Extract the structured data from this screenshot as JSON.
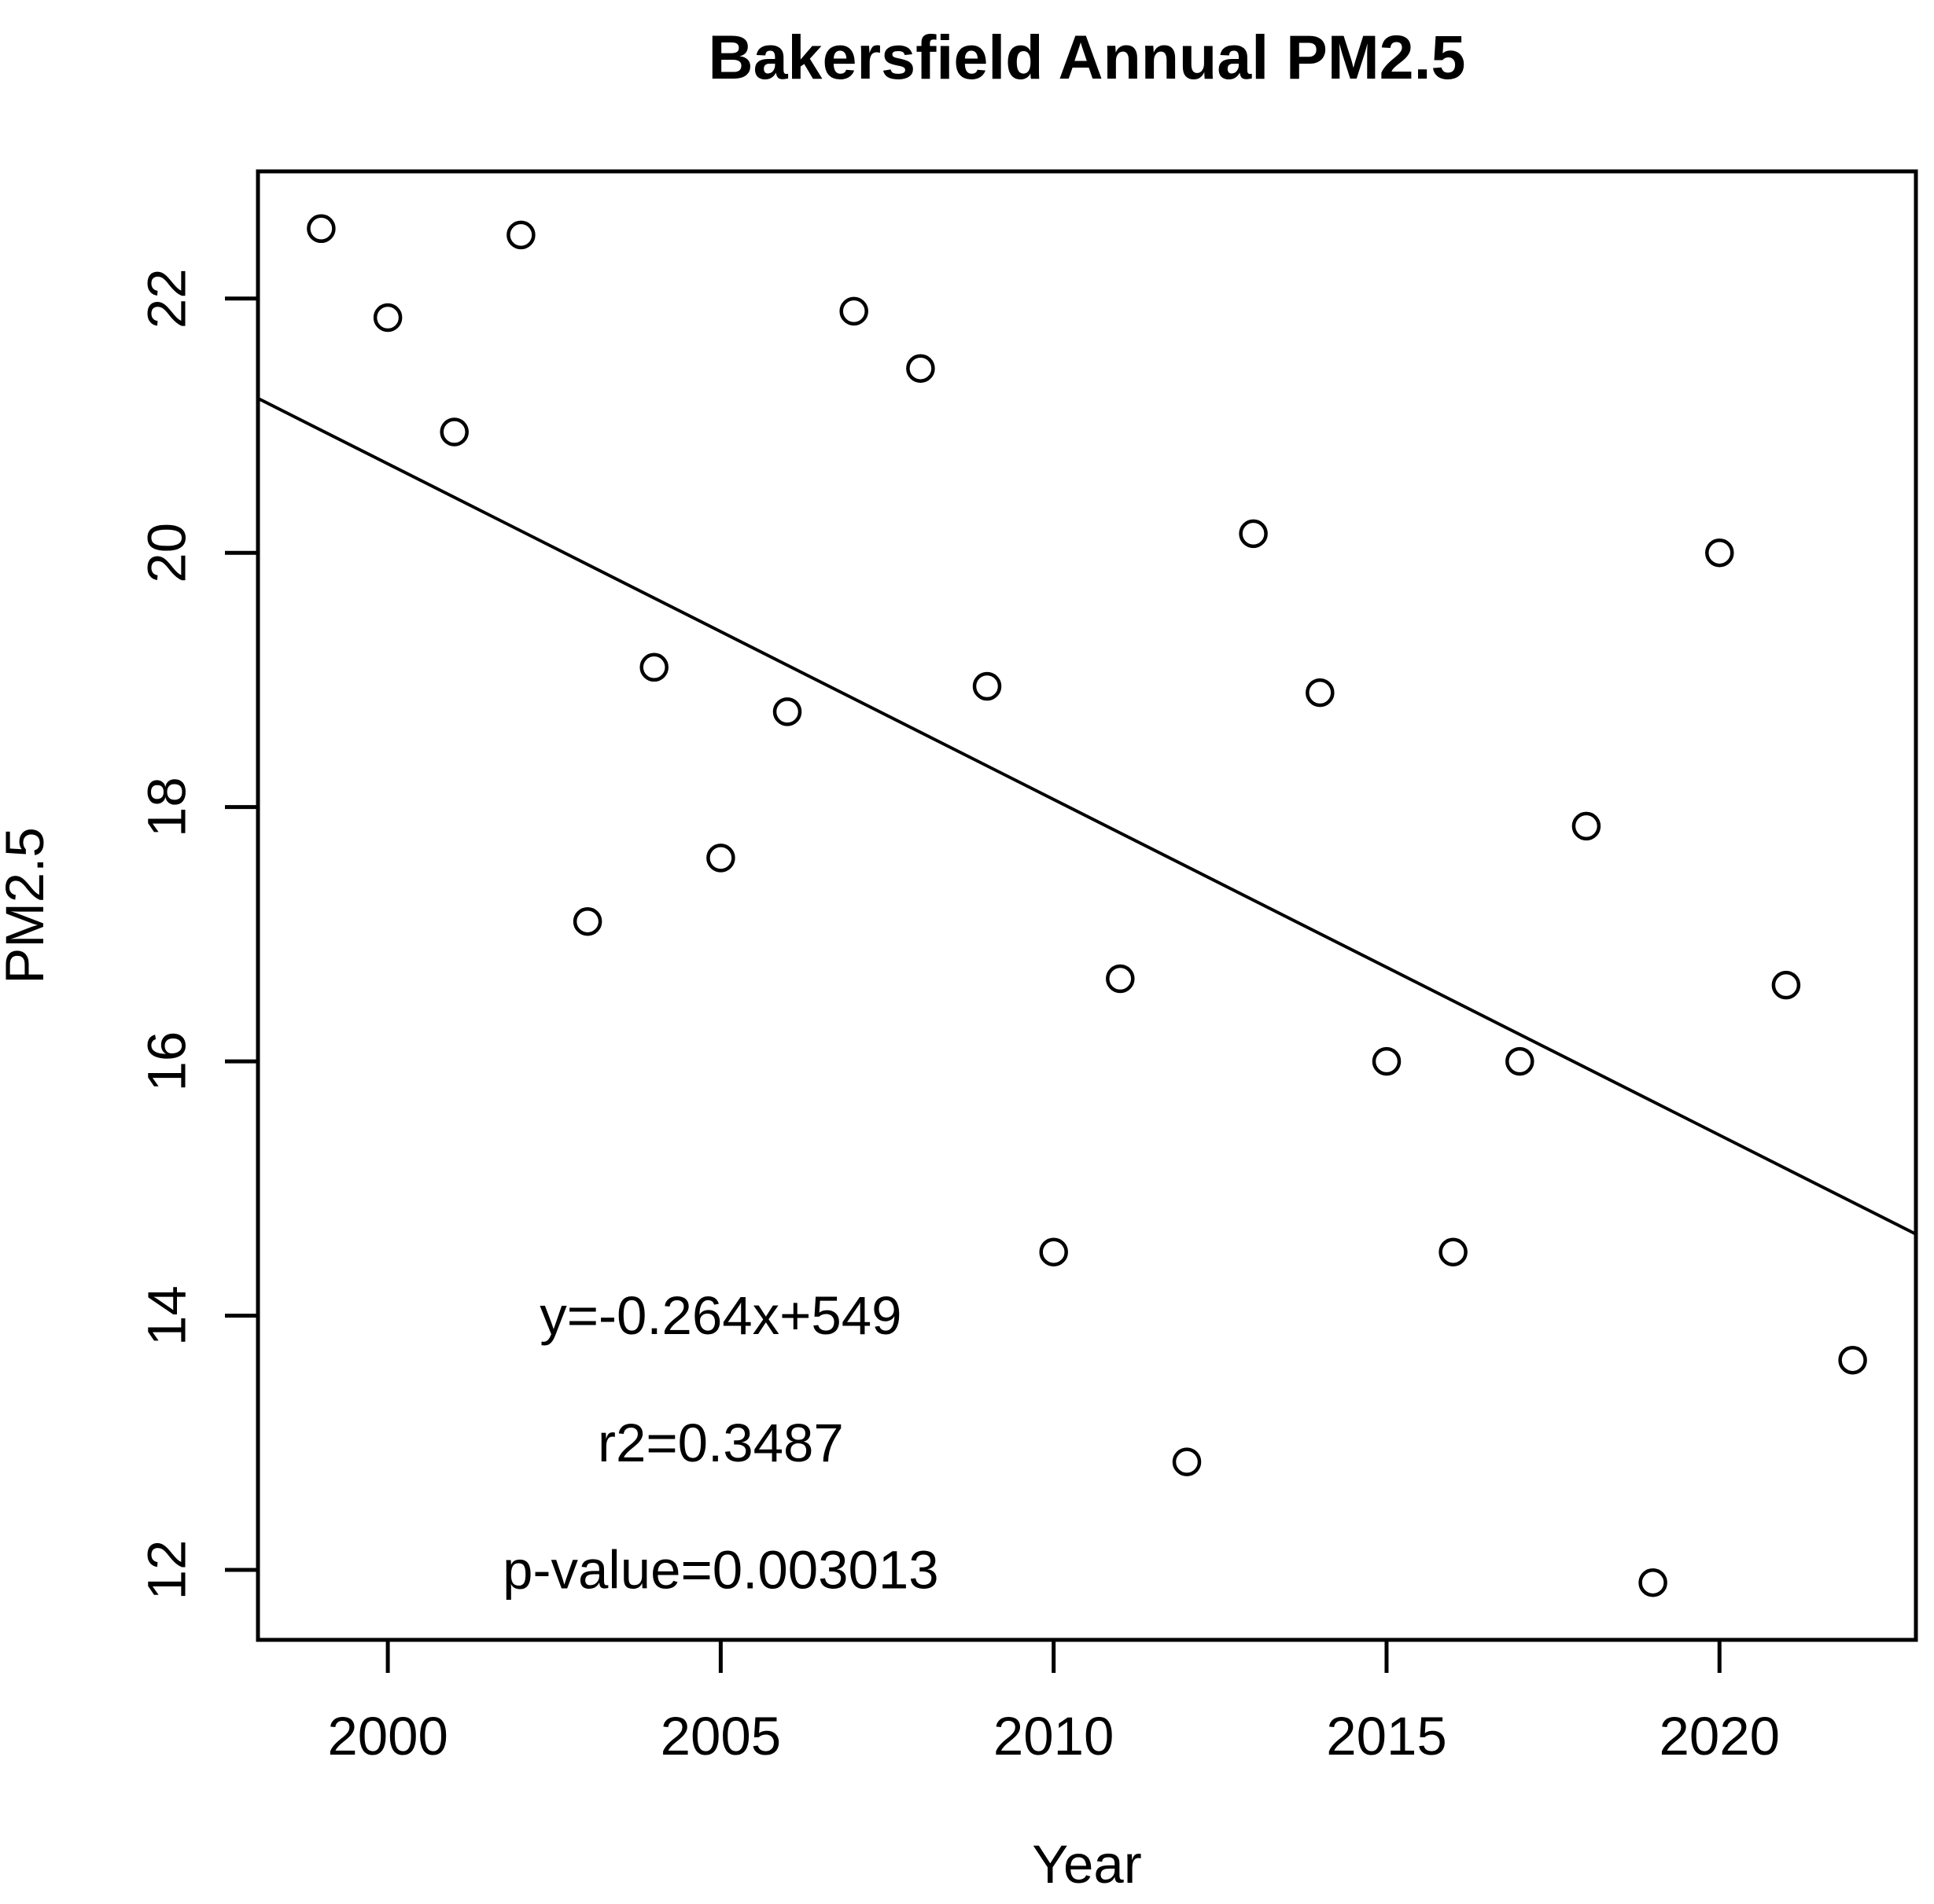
{
  "chart_data": {
    "type": "scatter",
    "title": "Bakersfield Annual PM2.5",
    "xlabel": "Year",
    "ylabel": "PM2.5",
    "xlim": [
      1998.05,
      2022.95
    ],
    "ylim": [
      11.45,
      23.0
    ],
    "xticks": [
      2000,
      2005,
      2010,
      2015,
      2020
    ],
    "yticks": [
      12,
      14,
      16,
      18,
      20,
      22
    ],
    "grid": "off",
    "marker": "open-circle",
    "x": [
      1999,
      2000,
      2001,
      2002,
      2003,
      2004,
      2005,
      2006,
      2007,
      2008,
      2009,
      2010,
      2011,
      2012,
      2013,
      2014,
      2015,
      2016,
      2017,
      2018,
      2019,
      2020,
      2021,
      2022
    ],
    "y": [
      22.55,
      21.85,
      20.95,
      22.5,
      17.1,
      19.1,
      17.6,
      18.75,
      21.9,
      21.45,
      18.95,
      14.5,
      16.65,
      12.85,
      20.15,
      18.9,
      16.0,
      14.5,
      16.0,
      17.85,
      11.9,
      20.0,
      16.6,
      13.65
    ],
    "trendline": {
      "slope": -0.264,
      "intercept": 548.7,
      "r2": 0.3487,
      "p_value": 0.003013
    },
    "annotations": [
      {
        "text": "y=-0.264x+549",
        "x": 2005,
        "y": 14
      },
      {
        "text": "r2=0.3487",
        "x": 2005,
        "y": 13
      },
      {
        "text": "p-value=0.003013",
        "x": 2005,
        "y": 12
      }
    ],
    "colors": {
      "foreground": "#000000",
      "background": "#ffffff"
    }
  }
}
